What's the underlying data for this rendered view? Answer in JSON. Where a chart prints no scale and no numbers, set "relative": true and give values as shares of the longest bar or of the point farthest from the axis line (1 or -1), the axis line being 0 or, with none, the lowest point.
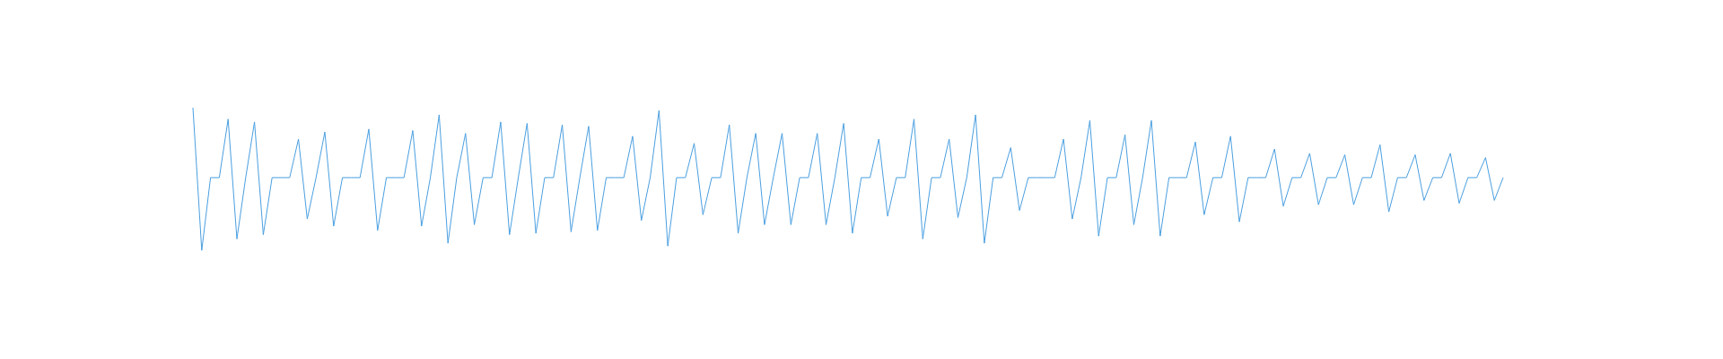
{
  "chart_data": {
    "type": "line",
    "relative": true,
    "marker": "none",
    "categories": [
      null,
      null,
      null,
      null,
      null,
      null,
      null,
      null,
      null,
      null,
      null,
      null,
      null,
      null,
      null,
      null,
      null,
      null,
      null,
      null,
      null,
      null,
      null,
      null,
      null,
      null,
      null,
      null,
      null,
      null,
      null,
      null,
      null,
      null,
      null,
      null,
      null,
      null,
      null,
      null,
      null,
      null,
      null,
      null,
      null,
      null,
      null,
      null,
      null,
      null,
      null,
      null,
      null,
      null,
      null,
      null,
      null,
      null,
      null,
      null,
      null,
      null,
      null,
      null,
      null,
      null,
      null,
      null,
      null,
      null,
      null,
      null,
      null,
      null,
      null,
      null,
      null,
      null,
      null,
      null,
      null,
      null,
      null,
      null,
      null,
      null,
      null,
      null,
      null,
      null,
      null,
      null,
      null,
      null,
      null,
      null,
      null,
      null,
      null,
      null,
      null,
      null,
      null,
      null,
      null,
      null,
      null,
      null,
      null,
      null,
      null,
      null,
      null,
      null,
      null,
      null,
      null,
      null,
      null,
      null,
      null,
      null,
      null,
      null,
      null,
      null,
      null,
      null,
      null,
      null,
      null,
      null,
      null,
      null,
      null,
      null,
      null,
      null,
      null,
      null,
      null,
      null,
      null,
      null,
      null,
      null,
      null,
      null,
      null,
      null
    ],
    "series": [
      {
        "color": "#4a9fe0",
        "values": [
          1,
          0,
          0.51,
          0.51,
          0.92,
          0.08,
          0.51,
          0.9,
          0.11,
          0.51,
          0.51,
          0.51,
          0.78,
          0.22,
          0.51,
          0.83,
          0.17,
          0.51,
          0.51,
          0.51,
          0.85,
          0.14,
          0.51,
          0.51,
          0.51,
          0.84,
          0.17,
          0.51,
          0.95,
          0.05,
          0.51,
          0.82,
          0.18,
          0.51,
          0.51,
          0.9,
          0.11,
          0.51,
          0.89,
          0.12,
          0.51,
          0.51,
          0.88,
          0.13,
          0.51,
          0.87,
          0.14,
          0.51,
          0.51,
          0.51,
          0.8,
          0.21,
          0.51,
          0.98,
          0.03,
          0.51,
          0.51,
          0.75,
          0.25,
          0.51,
          0.51,
          0.88,
          0.12,
          0.51,
          0.82,
          0.18,
          0.51,
          0.82,
          0.18,
          0.51,
          0.51,
          0.82,
          0.18,
          0.51,
          0.89,
          0.12,
          0.51,
          0.51,
          0.78,
          0.24,
          0.51,
          0.51,
          0.92,
          0.08,
          0.51,
          0.51,
          0.78,
          0.23,
          0.51,
          0.95,
          0.05,
          0.51,
          0.51,
          0.72,
          0.28,
          0.51,
          0.51,
          0.51,
          0.51,
          0.78,
          0.22,
          0.51,
          0.91,
          0.1,
          0.51,
          0.51,
          0.81,
          0.18,
          0.51,
          0.91,
          0.1,
          0.51,
          0.51,
          0.51,
          0.76,
          0.25,
          0.51,
          0.51,
          0.8,
          0.2,
          0.51,
          0.51,
          0.51,
          0.71,
          0.31,
          0.51,
          0.51,
          0.68,
          0.32,
          0.51,
          0.51,
          0.67,
          0.32,
          0.51,
          0.51,
          0.74,
          0.27,
          0.51,
          0.51,
          0.67,
          0.35,
          0.51,
          0.51,
          0.68,
          0.33,
          0.51,
          0.51,
          0.65,
          0.35,
          0.51
        ]
      }
    ]
  }
}
